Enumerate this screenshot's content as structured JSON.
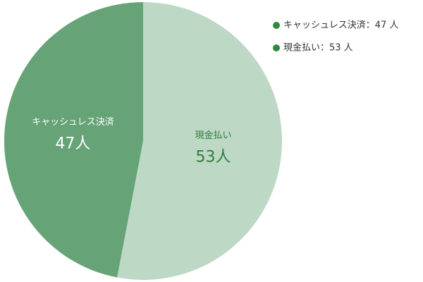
{
  "chart_data": {
    "type": "pie",
    "categories": [
      "キャッシュレス決済",
      "現金払い"
    ],
    "values": [
      47,
      53
    ],
    "value_labels": [
      "47人",
      "53人"
    ],
    "colors": [
      "#66a377",
      "#bdd8c4"
    ],
    "label_colors": [
      "#ffffff",
      "#2e7d3e"
    ],
    "legend": [
      "キャッシュレス決済：47 人",
      "現金払い：53 人"
    ],
    "legend_color": "#2e8b3e",
    "legend_position": "top-right"
  }
}
